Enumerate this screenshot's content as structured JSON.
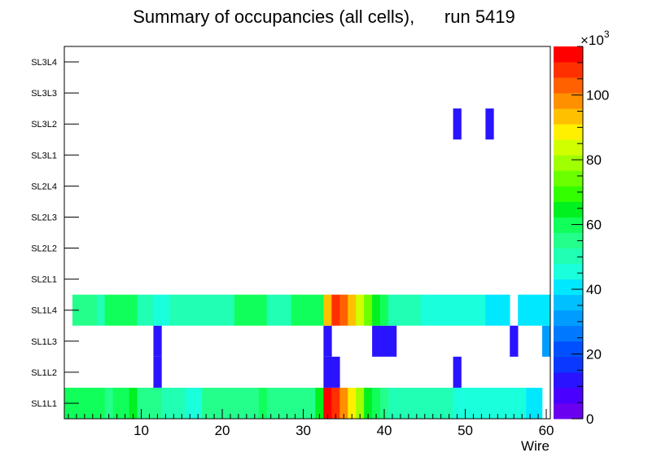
{
  "chart_data": {
    "type": "heatmap",
    "title": "Summary of occupancies (all cells),      run 5419",
    "xlabel": "Wire",
    "ylabel": "",
    "xlim": [
      0.5,
      60.5
    ],
    "x_ticks": [
      10,
      20,
      30,
      40,
      50,
      60
    ],
    "layers": [
      "SL1L1",
      "SL1L2",
      "SL1L3",
      "SL1L4",
      "SL2L1",
      "SL2L2",
      "SL2L3",
      "SL2L4",
      "SL3L1",
      "SL3L2",
      "SL3L3",
      "SL3L4"
    ],
    "colorbar": {
      "min": 0,
      "max": 115000,
      "ticks": [
        0,
        20,
        40,
        60,
        80,
        100
      ],
      "exponent_label": "×10",
      "exponent_power": "3"
    },
    "rows": {
      "SL1L1": [
        62000,
        62000,
        58000,
        58000,
        58000,
        55000,
        62000,
        58000,
        66000,
        55000,
        55000,
        55000,
        48000,
        48000,
        48000,
        44000,
        44000,
        55000,
        55000,
        55000,
        55000,
        55000,
        55000,
        55000,
        62000,
        55000,
        55000,
        55000,
        55000,
        55000,
        55000,
        66000,
        113000,
        108000,
        100000,
        90000,
        80000,
        66000,
        62000,
        55000,
        48000,
        48000,
        48000,
        48000,
        48000,
        48000,
        48000,
        48000,
        44000,
        44000,
        44000,
        44000,
        44000,
        44000,
        44000,
        44000,
        44000,
        40000,
        40000,
        0
      ],
      "SL1L2": [
        0,
        0,
        0,
        0,
        0,
        0,
        0,
        0,
        0,
        0,
        0,
        10000,
        0,
        0,
        0,
        0,
        0,
        0,
        0,
        0,
        0,
        0,
        0,
        0,
        0,
        0,
        0,
        0,
        0,
        0,
        0,
        0,
        10000,
        10000,
        0,
        0,
        0,
        0,
        0,
        0,
        0,
        0,
        0,
        0,
        0,
        0,
        0,
        0,
        10000,
        0,
        0,
        0,
        0,
        0,
        0,
        0,
        0,
        0,
        0,
        0
      ],
      "SL1L3": [
        0,
        0,
        0,
        0,
        0,
        0,
        0,
        0,
        0,
        0,
        0,
        10000,
        0,
        0,
        0,
        0,
        0,
        0,
        0,
        0,
        0,
        0,
        0,
        0,
        0,
        0,
        0,
        0,
        0,
        0,
        0,
        0,
        10000,
        0,
        0,
        0,
        0,
        0,
        10000,
        10000,
        10000,
        0,
        0,
        0,
        0,
        0,
        0,
        0,
        0,
        0,
        0,
        0,
        0,
        0,
        0,
        10000,
        0,
        0,
        0,
        33000
      ],
      "SL1L4": [
        0,
        55000,
        55000,
        55000,
        48000,
        58000,
        58000,
        58000,
        58000,
        52000,
        52000,
        44000,
        44000,
        48000,
        48000,
        48000,
        48000,
        48000,
        48000,
        48000,
        48000,
        58000,
        58000,
        58000,
        58000,
        52000,
        52000,
        52000,
        58000,
        58000,
        58000,
        58000,
        92000,
        110000,
        103000,
        92000,
        85000,
        72000,
        66000,
        58000,
        52000,
        52000,
        52000,
        52000,
        44000,
        44000,
        44000,
        44000,
        44000,
        44000,
        44000,
        44000,
        40000,
        40000,
        40000,
        0,
        40000,
        40000,
        40000,
        40000
      ],
      "SL2L1": [],
      "SL2L2": [],
      "SL2L3": [],
      "SL2L4": [],
      "SL3L1": [],
      "SL3L2": [
        0,
        0,
        0,
        0,
        0,
        0,
        0,
        0,
        0,
        0,
        0,
        0,
        0,
        0,
        0,
        0,
        0,
        0,
        0,
        0,
        0,
        0,
        0,
        0,
        0,
        0,
        0,
        0,
        0,
        0,
        0,
        0,
        0,
        0,
        0,
        0,
        0,
        0,
        0,
        0,
        0,
        0,
        0,
        0,
        0,
        0,
        0,
        0,
        10000,
        0,
        0,
        0,
        10000,
        0,
        0,
        0,
        0,
        0,
        0,
        0
      ],
      "SL3L3": [],
      "SL3L4": []
    }
  }
}
